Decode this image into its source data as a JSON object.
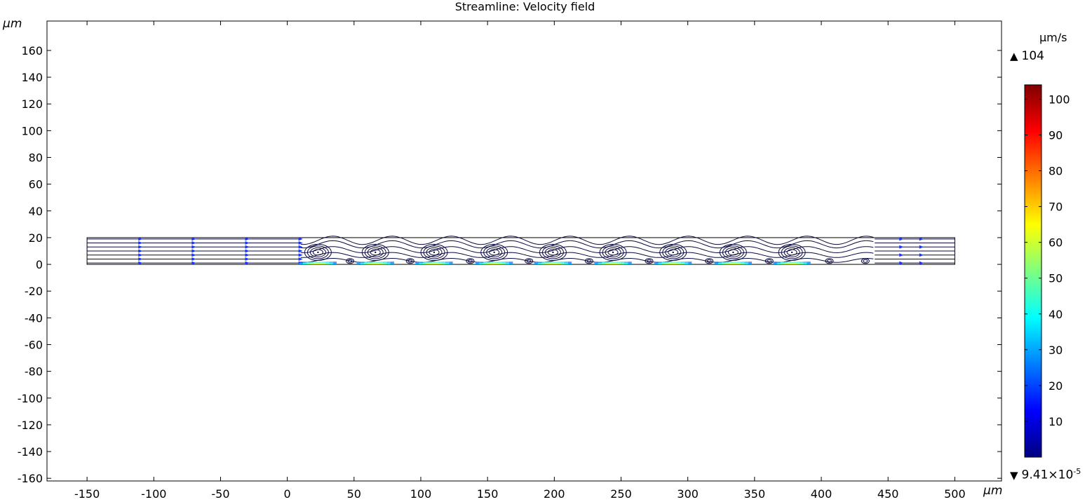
{
  "chart_data": {
    "type": "streamline",
    "title": "Streamline: Velocity field",
    "xlabel": "µm",
    "ylabel": "µm",
    "xlim": [
      -180,
      535
    ],
    "ylim": [
      -162,
      182
    ],
    "xticks": [
      -150,
      -100,
      -50,
      0,
      50,
      100,
      150,
      200,
      250,
      300,
      350,
      400,
      450,
      500
    ],
    "yticks": [
      -160,
      -140,
      -120,
      -100,
      -80,
      -60,
      -40,
      -20,
      0,
      20,
      40,
      60,
      80,
      100,
      120,
      140,
      160
    ],
    "channel": {
      "x": [
        -150,
        500
      ],
      "y": [
        0,
        20
      ]
    },
    "inlet_streamlines_y": [
      1,
      4,
      7,
      10,
      13,
      16,
      19
    ],
    "vortex_x": [
      23,
      66,
      110,
      155,
      199,
      244,
      289,
      334,
      378
    ],
    "small_vortex_x": [
      47,
      92,
      137,
      181,
      226,
      271,
      316,
      361,
      406,
      433
    ],
    "colorbar": {
      "unit": "µm/s",
      "max_label": "104",
      "min_mantissa": "9.41×10",
      "min_exponent": "-5",
      "ticks": [
        10,
        20,
        30,
        40,
        50,
        60,
        70,
        80,
        90,
        100
      ],
      "range": [
        9.41e-05,
        104
      ],
      "colormap": "rainbow",
      "colors": [
        "#00007f",
        "#0000ff",
        "#007fff",
        "#00ffff",
        "#7fff7f",
        "#ffff00",
        "#ff7f00",
        "#ff0000",
        "#7f0000"
      ]
    }
  }
}
